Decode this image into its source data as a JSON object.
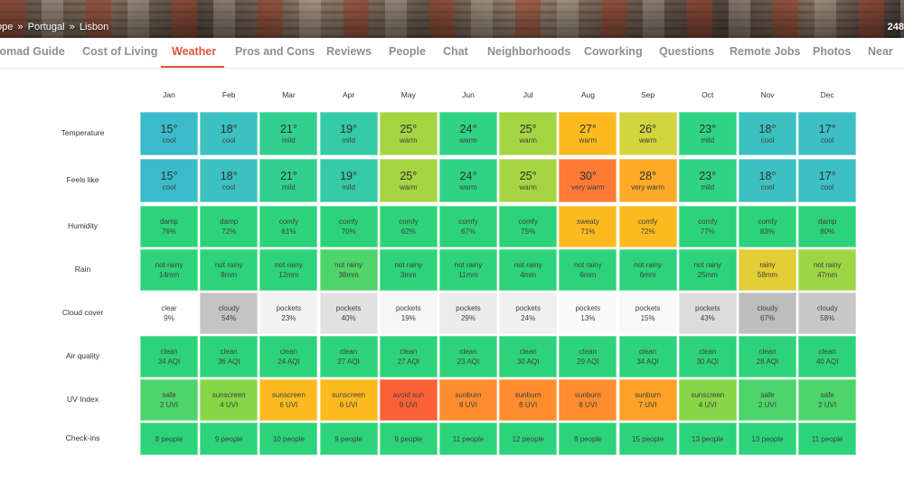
{
  "hero": {
    "breadcrumb": [
      "ope",
      "Portugal",
      "Lisbon"
    ],
    "breadcrumb_separator": "»",
    "right_count": "248"
  },
  "tabs": [
    {
      "label": "lomad Guide",
      "active": false
    },
    {
      "label": "Cost of Living",
      "active": false
    },
    {
      "label": "Weather",
      "active": true
    },
    {
      "label": "Pros and Cons",
      "active": false
    },
    {
      "label": "Reviews",
      "active": false
    },
    {
      "label": "People",
      "active": false
    },
    {
      "label": "Chat",
      "active": false
    },
    {
      "label": "Neighborhoods",
      "active": false
    },
    {
      "label": "Coworking",
      "active": false
    },
    {
      "label": "Questions",
      "active": false
    },
    {
      "label": "Remote Jobs",
      "active": false
    },
    {
      "label": "Photos",
      "active": false
    },
    {
      "label": "Near",
      "active": false
    }
  ],
  "colors": {
    "active_tab": "#e0533f",
    "cool": "#3bbbc9",
    "mild": "#31d08e",
    "warm_yellowgreen": "#a5d442",
    "warm_amber": "#fbbb1f",
    "warm_olive": "#d2d53e",
    "very_warm_orange": "#fd7b34",
    "green": "#2dd37a",
    "rain_yellow": "#e3ce35",
    "cloud_white": "#ffffff",
    "cloud_light": "#e7e7e7",
    "cloud_gray": "#c4c4c4",
    "uv_red": "#fb6136",
    "uv_orange": "#fd8d2d",
    "uv_sunscreen_green": "#86d647"
  },
  "months": [
    "Jan",
    "Feb",
    "Mar",
    "Apr",
    "May",
    "Jun",
    "Jul",
    "Aug",
    "Sep",
    "Oct",
    "Nov",
    "Dec"
  ],
  "rows": [
    {
      "label": "Temperature",
      "cells": [
        {
          "main": "15°",
          "sub": "cool",
          "color": "#3bbbc9"
        },
        {
          "main": "18°",
          "sub": "cool",
          "color": "#3bc1c0"
        },
        {
          "main": "21°",
          "sub": "mild",
          "color": "#31d08e"
        },
        {
          "main": "19°",
          "sub": "mild",
          "color": "#34cba6"
        },
        {
          "main": "25°",
          "sub": "warm",
          "color": "#a5d442"
        },
        {
          "main": "24°",
          "sub": "warm",
          "color": "#2fd384"
        },
        {
          "main": "25°",
          "sub": "warm",
          "color": "#a5d442"
        },
        {
          "main": "27°",
          "sub": "warm",
          "color": "#fbbb1f"
        },
        {
          "main": "26°",
          "sub": "warm",
          "color": "#d2d53e"
        },
        {
          "main": "23°",
          "sub": "mild",
          "color": "#2fd384"
        },
        {
          "main": "18°",
          "sub": "cool",
          "color": "#3bc1c0"
        },
        {
          "main": "17°",
          "sub": "cool",
          "color": "#3bbfc4"
        }
      ]
    },
    {
      "label": "Feels like",
      "cells": [
        {
          "main": "15°",
          "sub": "cool",
          "color": "#3bbbc9"
        },
        {
          "main": "18°",
          "sub": "cool",
          "color": "#3bc1c0"
        },
        {
          "main": "21°",
          "sub": "mild",
          "color": "#31d08e"
        },
        {
          "main": "19°",
          "sub": "mild",
          "color": "#34cba6"
        },
        {
          "main": "25°",
          "sub": "warm",
          "color": "#a5d442"
        },
        {
          "main": "24°",
          "sub": "warm",
          "color": "#2fd384"
        },
        {
          "main": "25°",
          "sub": "warm",
          "color": "#a5d442"
        },
        {
          "main": "30°",
          "sub": "very warm",
          "color": "#fd7b34"
        },
        {
          "main": "28°",
          "sub": "very warm",
          "color": "#fdaa27"
        },
        {
          "main": "23°",
          "sub": "mild",
          "color": "#2fd384"
        },
        {
          "main": "18°",
          "sub": "cool",
          "color": "#3bc1c0"
        },
        {
          "main": "17°",
          "sub": "cool",
          "color": "#3bbfc4"
        }
      ]
    },
    {
      "label": "Humidity",
      "cells": [
        {
          "main": "damp",
          "sub": "76%",
          "color": "#2dd37a"
        },
        {
          "main": "damp",
          "sub": "72%",
          "color": "#2dd37a"
        },
        {
          "main": "comfy",
          "sub": "61%",
          "color": "#2dd37a"
        },
        {
          "main": "comfy",
          "sub": "70%",
          "color": "#2dd37a"
        },
        {
          "main": "comfy",
          "sub": "62%",
          "color": "#2dd37a"
        },
        {
          "main": "comfy",
          "sub": "67%",
          "color": "#2dd37a"
        },
        {
          "main": "comfy",
          "sub": "75%",
          "color": "#2dd37a"
        },
        {
          "main": "sweaty",
          "sub": "71%",
          "color": "#fbbb1f"
        },
        {
          "main": "comfy",
          "sub": "72%",
          "color": "#fbbb1f"
        },
        {
          "main": "comfy",
          "sub": "77%",
          "color": "#2dd37a"
        },
        {
          "main": "comfy",
          "sub": "83%",
          "color": "#2dd37a"
        },
        {
          "main": "damp",
          "sub": "80%",
          "color": "#2dd37a"
        }
      ]
    },
    {
      "label": "Rain",
      "cells": [
        {
          "main": "not rainy",
          "sub": "14mm",
          "color": "#2dd37a"
        },
        {
          "main": "not rainy",
          "sub": "8mm",
          "color": "#2dd37a"
        },
        {
          "main": "not rainy",
          "sub": "12mm",
          "color": "#2dd37a"
        },
        {
          "main": "not rainy",
          "sub": "38mm",
          "color": "#4fd46a"
        },
        {
          "main": "not rainy",
          "sub": "3mm",
          "color": "#2dd37a"
        },
        {
          "main": "not rainy",
          "sub": "11mm",
          "color": "#2dd37a"
        },
        {
          "main": "not rainy",
          "sub": "4mm",
          "color": "#2dd37a"
        },
        {
          "main": "not rainy",
          "sub": "6mm",
          "color": "#2dd37a"
        },
        {
          "main": "not rainy",
          "sub": "6mm",
          "color": "#2dd37a"
        },
        {
          "main": "not rainy",
          "sub": "25mm",
          "color": "#2dd37a"
        },
        {
          "main": "rainy",
          "sub": "58mm",
          "color": "#e3ce35"
        },
        {
          "main": "not rainy",
          "sub": "47mm",
          "color": "#9cd645"
        }
      ]
    },
    {
      "label": "Cloud cover",
      "cells": [
        {
          "main": "clear",
          "sub": "9%",
          "color": "#ffffff"
        },
        {
          "main": "cloudy",
          "sub": "54%",
          "color": "#c4c4c4"
        },
        {
          "main": "pockets",
          "sub": "23%",
          "color": "#f2f2f2"
        },
        {
          "main": "pockets",
          "sub": "40%",
          "color": "#e1e1e1"
        },
        {
          "main": "pockets",
          "sub": "19%",
          "color": "#f6f6f6"
        },
        {
          "main": "pockets",
          "sub": "29%",
          "color": "#ececec"
        },
        {
          "main": "pockets",
          "sub": "24%",
          "color": "#f0f0f0"
        },
        {
          "main": "pockets",
          "sub": "13%",
          "color": "#fafafa"
        },
        {
          "main": "pockets",
          "sub": "15%",
          "color": "#f8f8f8"
        },
        {
          "main": "pockets",
          "sub": "43%",
          "color": "#dcdcdc"
        },
        {
          "main": "cloudy",
          "sub": "67%",
          "color": "#bdbdbd"
        },
        {
          "main": "cloudy",
          "sub": "58%",
          "color": "#c8c8c8"
        }
      ]
    },
    {
      "label": "Air quality",
      "cells": [
        {
          "main": "clean",
          "sub": "34 AQI",
          "color": "#2dd37a"
        },
        {
          "main": "clean",
          "sub": "36 AQI",
          "color": "#2dd37a"
        },
        {
          "main": "clean",
          "sub": "24 AQI",
          "color": "#2dd37a"
        },
        {
          "main": "clean",
          "sub": "27 AQI",
          "color": "#2dd37a"
        },
        {
          "main": "clean",
          "sub": "27 AQI",
          "color": "#2dd37a"
        },
        {
          "main": "clean",
          "sub": "23 AQI",
          "color": "#2dd37a"
        },
        {
          "main": "clean",
          "sub": "30 AQI",
          "color": "#2dd37a"
        },
        {
          "main": "clean",
          "sub": "29 AQI",
          "color": "#2dd37a"
        },
        {
          "main": "clean",
          "sub": "34 AQI",
          "color": "#2dd37a"
        },
        {
          "main": "clean",
          "sub": "30 AQI",
          "color": "#2dd37a"
        },
        {
          "main": "clean",
          "sub": "28 AQI",
          "color": "#2dd37a"
        },
        {
          "main": "clean",
          "sub": "40 AQI",
          "color": "#2dd37a"
        }
      ]
    },
    {
      "label": "UV Index",
      "cells": [
        {
          "main": "safe",
          "sub": "2 UVI",
          "color": "#4dd46b"
        },
        {
          "main": "sunscreen",
          "sub": "4 UVI",
          "color": "#86d647"
        },
        {
          "main": "sunscreen",
          "sub": "6 UVI",
          "color": "#fbbb1f"
        },
        {
          "main": "sunscreen",
          "sub": "6 UVI",
          "color": "#fbbb1f"
        },
        {
          "main": "avoid sun",
          "sub": "9 UVI",
          "color": "#fb6136"
        },
        {
          "main": "sunburn",
          "sub": "8 UVI",
          "color": "#fd8d2d"
        },
        {
          "main": "sunburn",
          "sub": "8 UVI",
          "color": "#fd8d2d"
        },
        {
          "main": "sunburn",
          "sub": "8 UVI",
          "color": "#fd8d2d"
        },
        {
          "main": "sunburn",
          "sub": "7 UVI",
          "color": "#fda127"
        },
        {
          "main": "sunscreen",
          "sub": "4 UVI",
          "color": "#86d647"
        },
        {
          "main": "safe",
          "sub": "2 UVI",
          "color": "#4dd46b"
        },
        {
          "main": "safe",
          "sub": "2 UVI",
          "color": "#4dd46b"
        }
      ]
    },
    {
      "label": "Check-ins",
      "cells": [
        {
          "main": "",
          "sub": "8 people",
          "color": "#2dd37a"
        },
        {
          "main": "",
          "sub": "9 people",
          "color": "#2dd37a"
        },
        {
          "main": "",
          "sub": "10 people",
          "color": "#2dd37a"
        },
        {
          "main": "",
          "sub": "9 people",
          "color": "#2dd37a"
        },
        {
          "main": "",
          "sub": "9 people",
          "color": "#2dd37a"
        },
        {
          "main": "",
          "sub": "11 people",
          "color": "#2dd37a"
        },
        {
          "main": "",
          "sub": "12 people",
          "color": "#2dd37a"
        },
        {
          "main": "",
          "sub": "8 people",
          "color": "#2dd37a"
        },
        {
          "main": "",
          "sub": "15 people",
          "color": "#2dd37a"
        },
        {
          "main": "",
          "sub": "13 people",
          "color": "#2dd37a"
        },
        {
          "main": "",
          "sub": "13 people",
          "color": "#2dd37a"
        },
        {
          "main": "",
          "sub": "11 people",
          "color": "#2dd37a"
        }
      ]
    }
  ]
}
